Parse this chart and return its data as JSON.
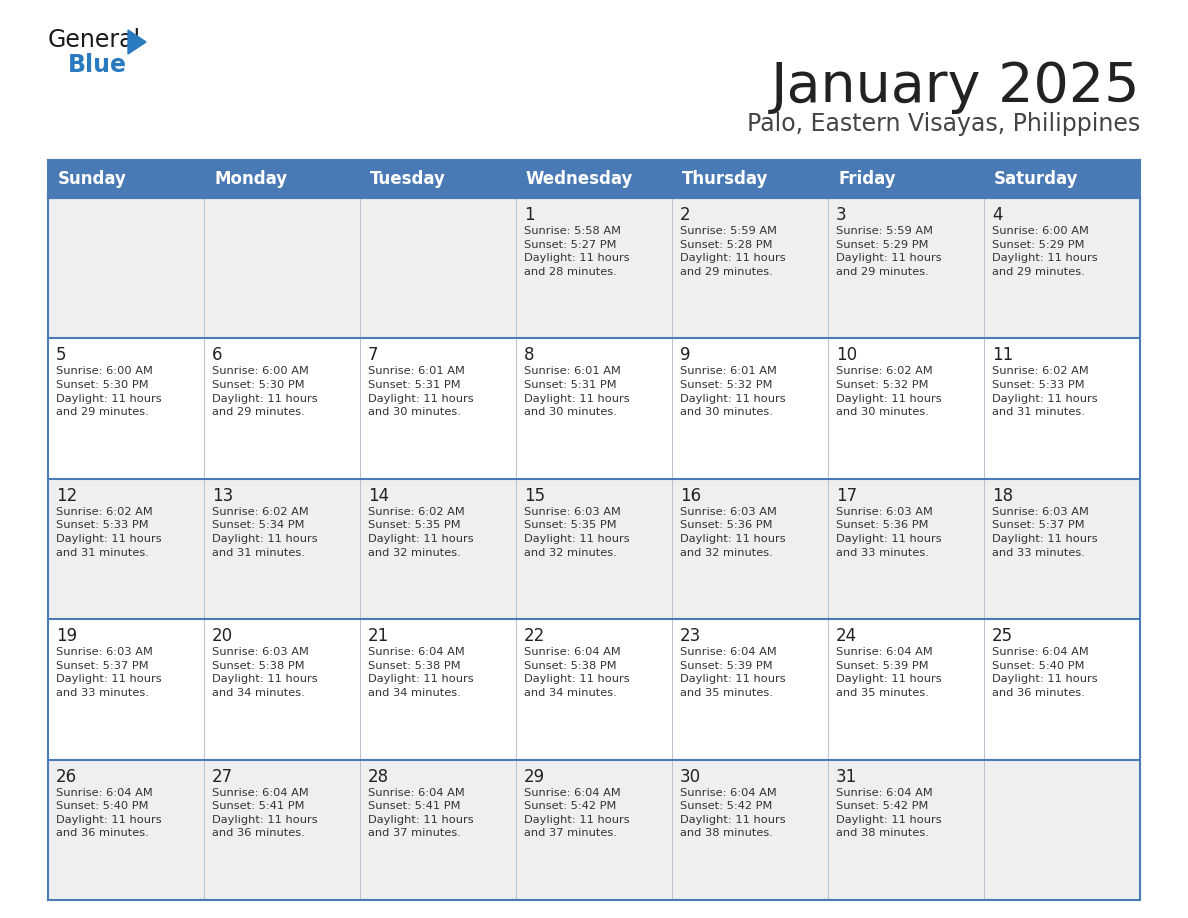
{
  "title": "January 2025",
  "subtitle": "Palo, Eastern Visayas, Philippines",
  "header_bg_color": "#4a7ab5",
  "header_text_color": "#ffffff",
  "weekdays": [
    "Sunday",
    "Monday",
    "Tuesday",
    "Wednesday",
    "Thursday",
    "Friday",
    "Saturday"
  ],
  "row_bg_even": "#efefef",
  "row_bg_odd": "#ffffff",
  "border_color": "#4a7ab5",
  "day_number_color": "#222222",
  "cell_text_color": "#333333",
  "title_color": "#222222",
  "subtitle_color": "#444444",
  "logo_black": "#1a1a1a",
  "logo_blue": "#2a7abf",
  "calendar": [
    [
      {
        "day": "",
        "text": ""
      },
      {
        "day": "",
        "text": ""
      },
      {
        "day": "",
        "text": ""
      },
      {
        "day": "1",
        "text": "Sunrise: 5:58 AM\nSunset: 5:27 PM\nDaylight: 11 hours\nand 28 minutes."
      },
      {
        "day": "2",
        "text": "Sunrise: 5:59 AM\nSunset: 5:28 PM\nDaylight: 11 hours\nand 29 minutes."
      },
      {
        "day": "3",
        "text": "Sunrise: 5:59 AM\nSunset: 5:29 PM\nDaylight: 11 hours\nand 29 minutes."
      },
      {
        "day": "4",
        "text": "Sunrise: 6:00 AM\nSunset: 5:29 PM\nDaylight: 11 hours\nand 29 minutes."
      }
    ],
    [
      {
        "day": "5",
        "text": "Sunrise: 6:00 AM\nSunset: 5:30 PM\nDaylight: 11 hours\nand 29 minutes."
      },
      {
        "day": "6",
        "text": "Sunrise: 6:00 AM\nSunset: 5:30 PM\nDaylight: 11 hours\nand 29 minutes."
      },
      {
        "day": "7",
        "text": "Sunrise: 6:01 AM\nSunset: 5:31 PM\nDaylight: 11 hours\nand 30 minutes."
      },
      {
        "day": "8",
        "text": "Sunrise: 6:01 AM\nSunset: 5:31 PM\nDaylight: 11 hours\nand 30 minutes."
      },
      {
        "day": "9",
        "text": "Sunrise: 6:01 AM\nSunset: 5:32 PM\nDaylight: 11 hours\nand 30 minutes."
      },
      {
        "day": "10",
        "text": "Sunrise: 6:02 AM\nSunset: 5:32 PM\nDaylight: 11 hours\nand 30 minutes."
      },
      {
        "day": "11",
        "text": "Sunrise: 6:02 AM\nSunset: 5:33 PM\nDaylight: 11 hours\nand 31 minutes."
      }
    ],
    [
      {
        "day": "12",
        "text": "Sunrise: 6:02 AM\nSunset: 5:33 PM\nDaylight: 11 hours\nand 31 minutes."
      },
      {
        "day": "13",
        "text": "Sunrise: 6:02 AM\nSunset: 5:34 PM\nDaylight: 11 hours\nand 31 minutes."
      },
      {
        "day": "14",
        "text": "Sunrise: 6:02 AM\nSunset: 5:35 PM\nDaylight: 11 hours\nand 32 minutes."
      },
      {
        "day": "15",
        "text": "Sunrise: 6:03 AM\nSunset: 5:35 PM\nDaylight: 11 hours\nand 32 minutes."
      },
      {
        "day": "16",
        "text": "Sunrise: 6:03 AM\nSunset: 5:36 PM\nDaylight: 11 hours\nand 32 minutes."
      },
      {
        "day": "17",
        "text": "Sunrise: 6:03 AM\nSunset: 5:36 PM\nDaylight: 11 hours\nand 33 minutes."
      },
      {
        "day": "18",
        "text": "Sunrise: 6:03 AM\nSunset: 5:37 PM\nDaylight: 11 hours\nand 33 minutes."
      }
    ],
    [
      {
        "day": "19",
        "text": "Sunrise: 6:03 AM\nSunset: 5:37 PM\nDaylight: 11 hours\nand 33 minutes."
      },
      {
        "day": "20",
        "text": "Sunrise: 6:03 AM\nSunset: 5:38 PM\nDaylight: 11 hours\nand 34 minutes."
      },
      {
        "day": "21",
        "text": "Sunrise: 6:04 AM\nSunset: 5:38 PM\nDaylight: 11 hours\nand 34 minutes."
      },
      {
        "day": "22",
        "text": "Sunrise: 6:04 AM\nSunset: 5:38 PM\nDaylight: 11 hours\nand 34 minutes."
      },
      {
        "day": "23",
        "text": "Sunrise: 6:04 AM\nSunset: 5:39 PM\nDaylight: 11 hours\nand 35 minutes."
      },
      {
        "day": "24",
        "text": "Sunrise: 6:04 AM\nSunset: 5:39 PM\nDaylight: 11 hours\nand 35 minutes."
      },
      {
        "day": "25",
        "text": "Sunrise: 6:04 AM\nSunset: 5:40 PM\nDaylight: 11 hours\nand 36 minutes."
      }
    ],
    [
      {
        "day": "26",
        "text": "Sunrise: 6:04 AM\nSunset: 5:40 PM\nDaylight: 11 hours\nand 36 minutes."
      },
      {
        "day": "27",
        "text": "Sunrise: 6:04 AM\nSunset: 5:41 PM\nDaylight: 11 hours\nand 36 minutes."
      },
      {
        "day": "28",
        "text": "Sunrise: 6:04 AM\nSunset: 5:41 PM\nDaylight: 11 hours\nand 37 minutes."
      },
      {
        "day": "29",
        "text": "Sunrise: 6:04 AM\nSunset: 5:42 PM\nDaylight: 11 hours\nand 37 minutes."
      },
      {
        "day": "30",
        "text": "Sunrise: 6:04 AM\nSunset: 5:42 PM\nDaylight: 11 hours\nand 38 minutes."
      },
      {
        "day": "31",
        "text": "Sunrise: 6:04 AM\nSunset: 5:42 PM\nDaylight: 11 hours\nand 38 minutes."
      },
      {
        "day": "",
        "text": ""
      }
    ]
  ]
}
